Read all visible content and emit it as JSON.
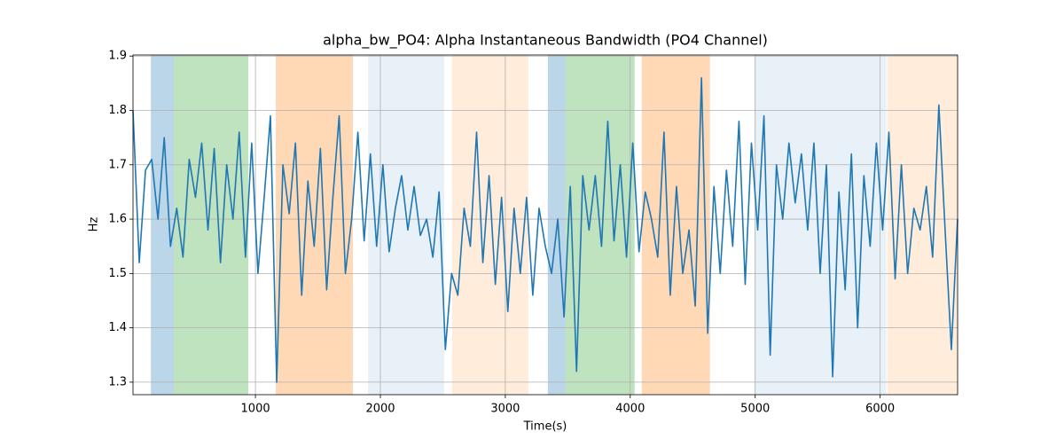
{
  "chart_data": {
    "type": "line",
    "title": "alpha_bw_PO4: Alpha Instantaneous Bandwidth (PO4 Channel)",
    "xlabel": "Time(s)",
    "ylabel": "Hz",
    "xlim": [
      20,
      6620
    ],
    "ylim": [
      1.277,
      1.902
    ],
    "xticks": [
      1000,
      2000,
      3000,
      4000,
      5000,
      6000
    ],
    "yticks": [
      1.3,
      1.4,
      1.5,
      1.6,
      1.7,
      1.8,
      1.9
    ],
    "grid": true,
    "spans": [
      {
        "start": 163,
        "end": 348,
        "color": "#1f77b4",
        "opacity": 0.3
      },
      {
        "start": 348,
        "end": 943,
        "color": "#2ca02c",
        "opacity": 0.3
      },
      {
        "start": 1163,
        "end": 1780,
        "color": "#ff7f0e",
        "opacity": 0.3
      },
      {
        "start": 1901,
        "end": 2511,
        "color": "#1f77b4",
        "opacity": 0.1
      },
      {
        "start": 2574,
        "end": 3184,
        "color": "#ff7f0e",
        "opacity": 0.15
      },
      {
        "start": 3340,
        "end": 3482,
        "color": "#1f77b4",
        "opacity": 0.3
      },
      {
        "start": 3482,
        "end": 4035,
        "color": "#2ca02c",
        "opacity": 0.3
      },
      {
        "start": 4092,
        "end": 4638,
        "color": "#ff7f0e",
        "opacity": 0.3
      },
      {
        "start": 4993,
        "end": 6050,
        "color": "#1f77b4",
        "opacity": 0.1
      },
      {
        "start": 6057,
        "end": 6617,
        "color": "#ff7f0e",
        "opacity": 0.15
      }
    ],
    "series": [
      {
        "color": "#1f77b4",
        "x": [
          20,
          70,
          120,
          170,
          220,
          270,
          320,
          370,
          420,
          470,
          520,
          570,
          620,
          670,
          720,
          770,
          820,
          870,
          920,
          970,
          1020,
          1070,
          1120,
          1170,
          1220,
          1270,
          1320,
          1370,
          1420,
          1470,
          1520,
          1570,
          1620,
          1670,
          1720,
          1770,
          1820,
          1870,
          1920,
          1970,
          2020,
          2070,
          2120,
          2170,
          2220,
          2270,
          2320,
          2370,
          2420,
          2470,
          2520,
          2570,
          2620,
          2670,
          2720,
          2770,
          2820,
          2870,
          2920,
          2970,
          3020,
          3070,
          3120,
          3170,
          3220,
          3270,
          3320,
          3370,
          3420,
          3470,
          3520,
          3570,
          3620,
          3670,
          3720,
          3770,
          3820,
          3870,
          3920,
          3970,
          4020,
          4070,
          4120,
          4170,
          4220,
          4270,
          4320,
          4370,
          4420,
          4470,
          4520,
          4570,
          4620,
          4670,
          4720,
          4770,
          4820,
          4870,
          4920,
          4970,
          5020,
          5070,
          5120,
          5170,
          5220,
          5270,
          5320,
          5370,
          5420,
          5470,
          5520,
          5570,
          5620,
          5670,
          5720,
          5770,
          5820,
          5870,
          5920,
          5970,
          6020,
          6070,
          6120,
          6170,
          6220,
          6270,
          6320,
          6370,
          6420,
          6470,
          6520,
          6570,
          6620
        ],
        "values": [
          1.8,
          1.52,
          1.69,
          1.71,
          1.6,
          1.75,
          1.55,
          1.62,
          1.53,
          1.71,
          1.64,
          1.74,
          1.58,
          1.73,
          1.52,
          1.7,
          1.6,
          1.76,
          1.53,
          1.74,
          1.5,
          1.64,
          1.79,
          1.3,
          1.7,
          1.61,
          1.74,
          1.46,
          1.67,
          1.55,
          1.73,
          1.47,
          1.64,
          1.79,
          1.5,
          1.6,
          1.76,
          1.56,
          1.72,
          1.55,
          1.7,
          1.54,
          1.62,
          1.68,
          1.58,
          1.66,
          1.57,
          1.6,
          1.53,
          1.65,
          1.36,
          1.5,
          1.46,
          1.62,
          1.55,
          1.76,
          1.52,
          1.68,
          1.48,
          1.64,
          1.43,
          1.62,
          1.5,
          1.64,
          1.46,
          1.62,
          1.55,
          1.5,
          1.6,
          1.42,
          1.66,
          1.32,
          1.68,
          1.58,
          1.68,
          1.55,
          1.78,
          1.56,
          1.7,
          1.53,
          1.74,
          1.54,
          1.65,
          1.6,
          1.53,
          1.76,
          1.46,
          1.66,
          1.5,
          1.58,
          1.44,
          1.86,
          1.39,
          1.66,
          1.5,
          1.69,
          1.55,
          1.78,
          1.48,
          1.74,
          1.58,
          1.79,
          1.35,
          1.7,
          1.6,
          1.74,
          1.63,
          1.72,
          1.58,
          1.74,
          1.5,
          1.7,
          1.31,
          1.65,
          1.47,
          1.72,
          1.4,
          1.68,
          1.55,
          1.74,
          1.58,
          1.76,
          1.49,
          1.7,
          1.5,
          1.62,
          1.58,
          1.66,
          1.53,
          1.81,
          1.58,
          1.36,
          1.6
        ]
      }
    ]
  }
}
